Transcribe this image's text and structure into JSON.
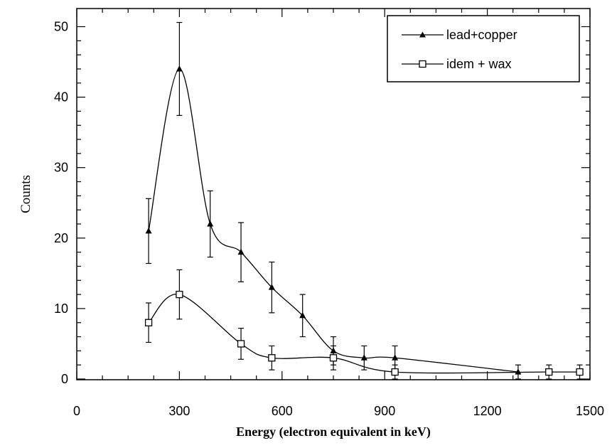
{
  "chart_data": {
    "type": "line",
    "xlabel": "Energy (electron equivalent in keV)",
    "ylabel": "Counts",
    "xlim": [
      0,
      1500
    ],
    "ylim": [
      0,
      50
    ],
    "x_ticks": [
      "0",
      "300",
      "600",
      "900",
      "1200",
      "1500"
    ],
    "y_ticks": [
      "0",
      "10",
      "20",
      "30",
      "40",
      "50"
    ],
    "legend_position": "top-right",
    "series": [
      {
        "name": "lead+copper",
        "marker": "filled-triangle",
        "points": [
          {
            "x": 210,
            "y": 21,
            "err": 4.6
          },
          {
            "x": 300,
            "y": 44,
            "err": 6.6
          },
          {
            "x": 390,
            "y": 22,
            "err": 4.7
          },
          {
            "x": 480,
            "y": 18,
            "err": 4.2
          },
          {
            "x": 570,
            "y": 13,
            "err": 3.6
          },
          {
            "x": 660,
            "y": 9,
            "err": 3.0
          },
          {
            "x": 750,
            "y": 4,
            "err": 2.0
          },
          {
            "x": 840,
            "y": 3,
            "err": 1.7
          },
          {
            "x": 930,
            "y": 3,
            "err": 1.7
          },
          {
            "x": 1290,
            "y": 1,
            "err": 1.0
          }
        ]
      },
      {
        "name": "idem + wax",
        "marker": "open-square",
        "points": [
          {
            "x": 210,
            "y": 8,
            "err": 2.8
          },
          {
            "x": 300,
            "y": 12,
            "err": 3.5
          },
          {
            "x": 480,
            "y": 5,
            "err": 2.2
          },
          {
            "x": 570,
            "y": 3,
            "err": 1.7
          },
          {
            "x": 750,
            "y": 3,
            "err": 1.7
          },
          {
            "x": 930,
            "y": 1,
            "err": 1.0
          },
          {
            "x": 1380,
            "y": 1,
            "err": 1.0
          },
          {
            "x": 1470,
            "y": 1,
            "err": 1.0
          }
        ]
      }
    ]
  }
}
